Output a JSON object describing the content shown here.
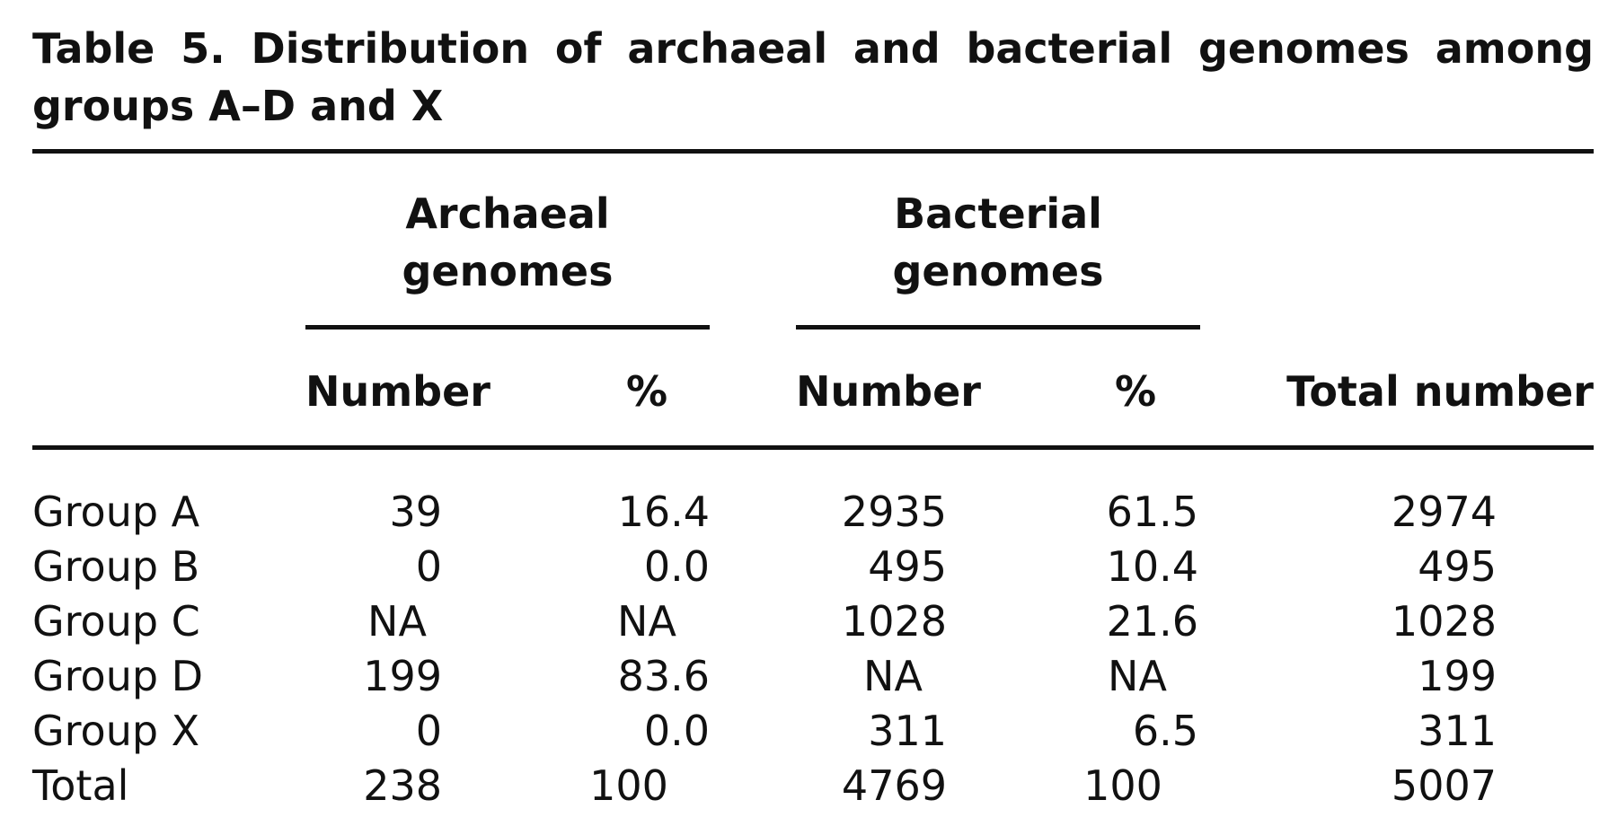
{
  "caption": {
    "label": "Table 5.",
    "line1_text": "Distribution of archaeal and bacterial genomes among",
    "line2_text": "groups A–D and X"
  },
  "table": {
    "group_headers": {
      "archaeal_line1": "Archaeal",
      "archaeal_line2": "genomes",
      "bacterial_line1": "Bacterial",
      "bacterial_line2": "genomes"
    },
    "column_headers": {
      "arch_number": "Number",
      "arch_pct": "%",
      "bact_number": "Number",
      "bact_pct": "%",
      "total": "Total number"
    },
    "rows": [
      {
        "label": "Group A",
        "arch_number": "39",
        "arch_pct": "16.4",
        "bact_number": "2935",
        "bact_pct": "61.5",
        "total": "2974"
      },
      {
        "label": "Group B",
        "arch_number": "0",
        "arch_pct": "0.0",
        "bact_number": "495",
        "bact_pct": "10.4",
        "total": "495"
      },
      {
        "label": "Group C",
        "arch_number": "NA",
        "arch_pct": "NA",
        "bact_number": "1028",
        "bact_pct": "21.6",
        "total": "1028"
      },
      {
        "label": "Group D",
        "arch_number": "199",
        "arch_pct": "83.6",
        "bact_number": "NA",
        "bact_pct": "NA",
        "total": "199"
      },
      {
        "label": "Group X",
        "arch_number": "0",
        "arch_pct": "0.0",
        "bact_number": "311",
        "bact_pct": "6.5",
        "total": "311"
      },
      {
        "label": "Total",
        "arch_number": "238",
        "arch_pct": "100",
        "bact_number": "4769",
        "bact_pct": "100",
        "total": "5007"
      }
    ]
  }
}
